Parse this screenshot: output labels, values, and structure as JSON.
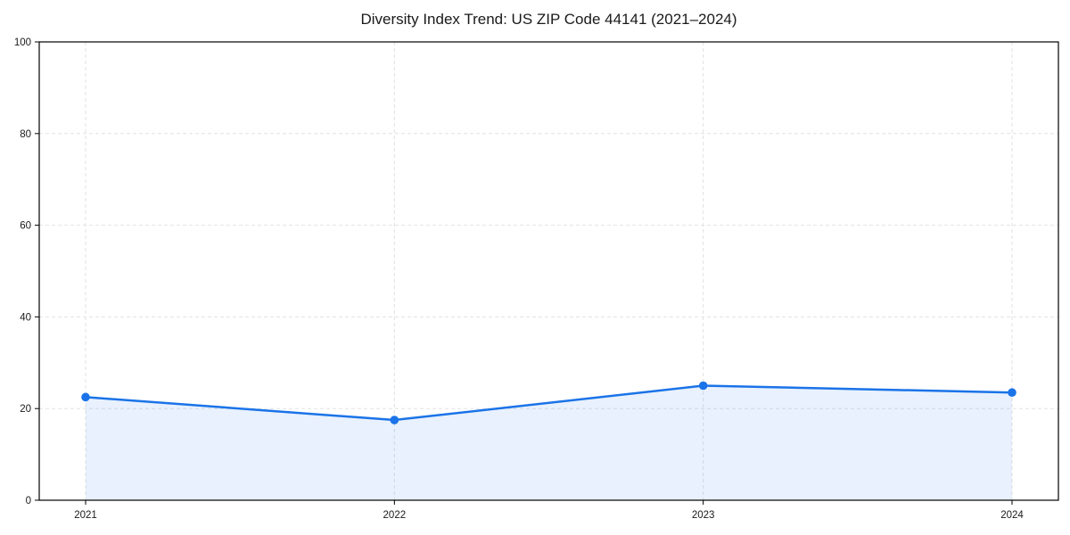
{
  "chart_data": {
    "type": "line",
    "title": "Diversity Index Trend: US ZIP Code 44141 (2021–2024)",
    "x": [
      "2021",
      "2022",
      "2023",
      "2024"
    ],
    "series": [
      {
        "name": "Diversity Index",
        "values": [
          22.5,
          17.5,
          25,
          23.5
        ]
      }
    ],
    "xlabel": "",
    "ylabel": "",
    "ylim": [
      0,
      100
    ],
    "yticks": [
      0,
      20,
      40,
      60,
      80,
      100
    ],
    "grid": "dashed, both directions",
    "legend": "none",
    "area_fill_under_line": true,
    "marker": "circle",
    "colors": {
      "line": "#1a73e8",
      "marker": "#1a73e8",
      "area_fill": "rgba(26,115,232,0.10)",
      "grid": "#e2e2e2",
      "spine": "#000000",
      "tick_text": "#1a1a1a",
      "background": "#ffffff"
    }
  }
}
